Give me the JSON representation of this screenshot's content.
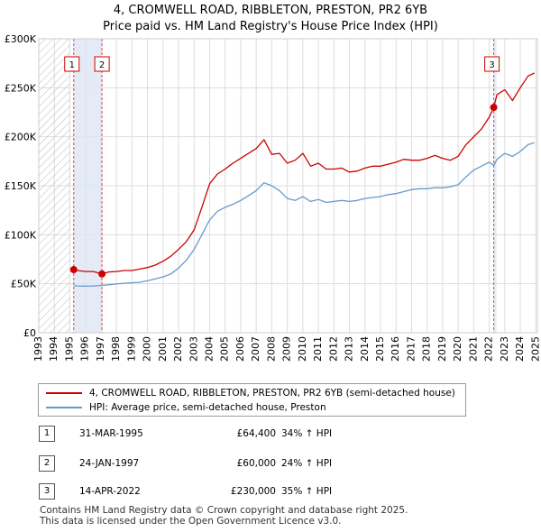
{
  "title_line1": "4, CROMWELL ROAD, RIBBLETON, PRESTON, PR2 6YB",
  "title_line2": "Price paid vs. HM Land Registry's House Price Index (HPI)",
  "chart_data": {
    "type": "line",
    "xlim": [
      1993.0,
      2025.1
    ],
    "ylim": [
      0,
      300000
    ],
    "y_ticks": [
      {
        "value": 0,
        "label": "£0"
      },
      {
        "value": 50000,
        "label": "£50K"
      },
      {
        "value": 100000,
        "label": "£100K"
      },
      {
        "value": 150000,
        "label": "£150K"
      },
      {
        "value": 200000,
        "label": "£200K"
      },
      {
        "value": 250000,
        "label": "£250K"
      },
      {
        "value": 300000,
        "label": "£300K"
      }
    ],
    "x_ticks": [
      "1993",
      "1994",
      "1995",
      "1996",
      "1997",
      "1998",
      "1999",
      "2000",
      "2001",
      "2002",
      "2003",
      "2004",
      "2005",
      "2006",
      "2007",
      "2008",
      "2009",
      "2010",
      "2011",
      "2012",
      "2013",
      "2014",
      "2015",
      "2016",
      "2017",
      "2018",
      "2019",
      "2020",
      "2021",
      "2022",
      "2023",
      "2024",
      "2025"
    ],
    "series": [
      {
        "name": "4, CROMWELL ROAD, RIBBLETON, PRESTON, PR2 6YB (semi-detached house)",
        "color": "#cc0000",
        "x": [
          1995.25,
          1995.5,
          1996.0,
          1996.5,
          1997.07,
          1997.5,
          1998.0,
          1998.5,
          1999.0,
          1999.5,
          2000.0,
          2000.5,
          2001.0,
          2001.5,
          2002.0,
          2002.5,
          2003.0,
          2003.5,
          2004.0,
          2004.5,
          2005.0,
          2005.5,
          2006.0,
          2006.5,
          2007.0,
          2007.5,
          2008.0,
          2008.5,
          2009.0,
          2009.5,
          2010.0,
          2010.5,
          2011.0,
          2011.5,
          2012.0,
          2012.5,
          2013.0,
          2013.5,
          2014.0,
          2014.5,
          2015.0,
          2015.5,
          2016.0,
          2016.5,
          2017.0,
          2017.5,
          2018.0,
          2018.5,
          2019.0,
          2019.5,
          2020.0,
          2020.5,
          2021.0,
          2021.5,
          2022.0,
          2022.29,
          2022.5,
          2023.0,
          2023.5,
          2024.0,
          2024.5,
          2024.9
        ],
        "values": [
          64400,
          63500,
          62500,
          62500,
          60000,
          62000,
          62500,
          63500,
          63500,
          65000,
          66500,
          69000,
          73000,
          78000,
          85000,
          93000,
          105000,
          128000,
          152000,
          162000,
          167000,
          173000,
          178000,
          183000,
          188000,
          197000,
          182000,
          183000,
          173000,
          176000,
          183000,
          170000,
          173000,
          167000,
          167000,
          168000,
          164000,
          165000,
          168000,
          170000,
          170000,
          172000,
          174000,
          177000,
          176000,
          176000,
          178000,
          181000,
          178000,
          176000,
          180000,
          192000,
          200000,
          208000,
          220000,
          230000,
          243000,
          248000,
          237000,
          250000,
          262000,
          265000
        ]
      },
      {
        "name": "HPI: Average price, semi-detached house, Preston",
        "color": "#6699cc",
        "x": [
          1995.25,
          1995.5,
          1996.0,
          1996.5,
          1997.07,
          1997.5,
          1998.0,
          1998.5,
          1999.0,
          1999.5,
          2000.0,
          2000.5,
          2001.0,
          2001.5,
          2002.0,
          2002.5,
          2003.0,
          2003.5,
          2004.0,
          2004.5,
          2005.0,
          2005.5,
          2006.0,
          2006.5,
          2007.0,
          2007.5,
          2008.0,
          2008.5,
          2009.0,
          2009.5,
          2010.0,
          2010.5,
          2011.0,
          2011.5,
          2012.0,
          2012.5,
          2013.0,
          2013.5,
          2014.0,
          2014.5,
          2015.0,
          2015.5,
          2016.0,
          2016.5,
          2017.0,
          2017.5,
          2018.0,
          2018.5,
          2019.0,
          2019.5,
          2020.0,
          2020.5,
          2021.0,
          2021.5,
          2022.0,
          2022.29,
          2022.5,
          2023.0,
          2023.5,
          2024.0,
          2024.5,
          2024.9
        ],
        "values": [
          48000,
          47800,
          47600,
          47800,
          48400,
          49000,
          49800,
          50500,
          51000,
          51500,
          53000,
          55000,
          57000,
          60000,
          66000,
          74000,
          85000,
          100000,
          115000,
          124000,
          128000,
          131000,
          135000,
          140000,
          145000,
          153000,
          150000,
          145000,
          137000,
          135000,
          139000,
          134000,
          136000,
          133000,
          134000,
          135000,
          134000,
          135000,
          137000,
          138000,
          139000,
          141000,
          142000,
          144000,
          146000,
          147000,
          147000,
          148000,
          148000,
          149000,
          151000,
          159000,
          166000,
          170000,
          174000,
          170500,
          177000,
          183000,
          180000,
          185000,
          192000,
          194000
        ]
      }
    ],
    "markers": [
      {
        "num": "1",
        "x": 1995.25,
        "value": 64400
      },
      {
        "num": "2",
        "x": 1997.07,
        "value": 60000
      },
      {
        "num": "3",
        "x": 2022.29,
        "value": 230000
      }
    ],
    "hatched_before": 1995.0
  },
  "legend": {
    "series1_label": "4, CROMWELL ROAD, RIBBLETON, PRESTON, PR2 6YB (semi-detached house)",
    "series2_label": "HPI: Average price, semi-detached house, Preston"
  },
  "transactions": [
    {
      "num": "1",
      "date": "31-MAR-1995",
      "price": "£64,400",
      "hpi": "34% ↑ HPI"
    },
    {
      "num": "2",
      "date": "24-JAN-1997",
      "price": "£60,000",
      "hpi": "24% ↑ HPI"
    },
    {
      "num": "3",
      "date": "14-APR-2022",
      "price": "£230,000",
      "hpi": "35% ↑ HPI"
    }
  ],
  "footer": {
    "line1": "Contains HM Land Registry data © Crown copyright and database right 2025.",
    "line2": "This data is licensed under the Open Government Licence v3.0."
  }
}
